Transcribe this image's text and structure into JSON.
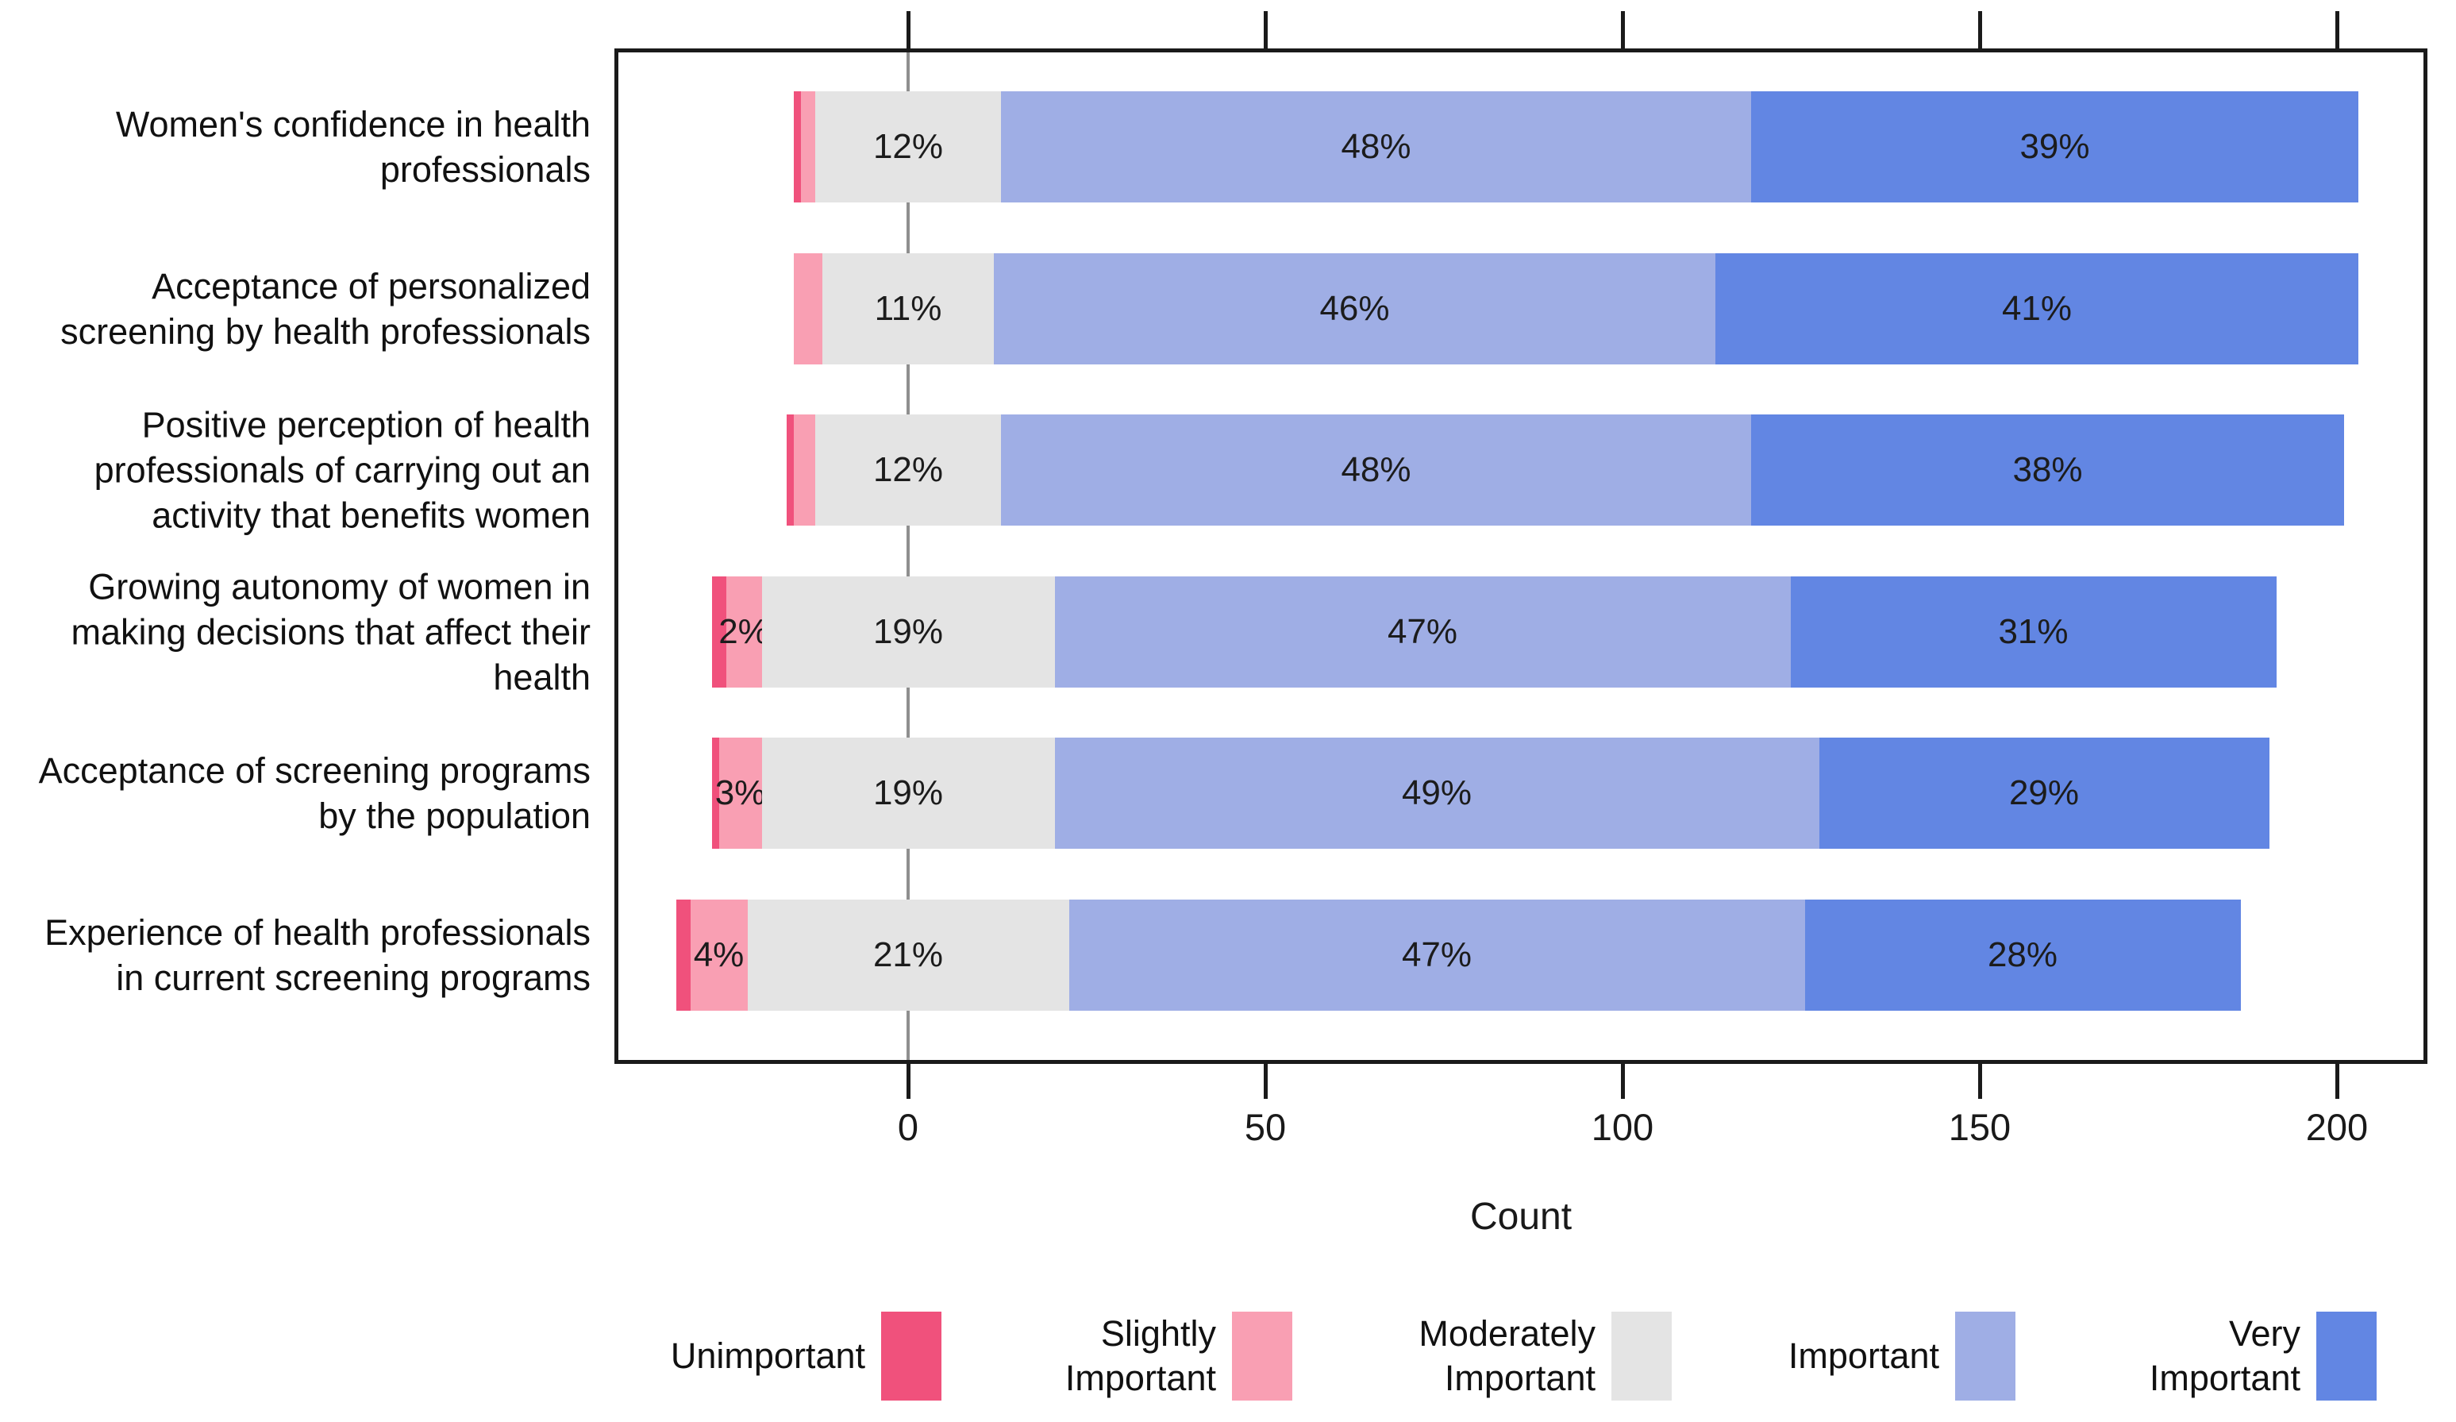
{
  "figure": {
    "xlabel": "Count"
  },
  "chart_data": {
    "type": "bar",
    "subtype": "diverging-stacked-likert-horizontal",
    "title": "",
    "xlabel": "Count",
    "ylabel": "",
    "x_ticks": [
      0,
      50,
      100,
      150,
      200
    ],
    "x_range": [
      -41,
      213
    ],
    "grid": "zero-line-only",
    "legend_position": "bottom",
    "note": "Counts per 5-point importance level [Unimportant, Slightly Important, Moderately Important, Important, Very Important]; bars centered on the Moderately Important midpoint at x=0. Percent labels as printed on the figure.",
    "levels": [
      {
        "key": "unimportant",
        "label": "Unimportant",
        "color": "#F0517C"
      },
      {
        "key": "slightly_important",
        "label": "Slightly\nImportant",
        "color": "#F99FB3"
      },
      {
        "key": "moderately_important",
        "label": "Moderately\nImportant",
        "color": "#E4E4E4"
      },
      {
        "key": "important",
        "label": "Important",
        "color": "#9FAEE5"
      },
      {
        "key": "very_important",
        "label": "Very\nImportant",
        "color": "#6286E3"
      }
    ],
    "rows": [
      {
        "label": "Women's confidence in health\nprofessionals",
        "counts": [
          1,
          2,
          26,
          105,
          85
        ],
        "pct_labels": [
          "",
          "",
          "12%",
          "48%",
          "39%"
        ]
      },
      {
        "label": "Acceptance of personalized\nscreening by health professionals",
        "counts": [
          0,
          4,
          24,
          101,
          90
        ],
        "pct_labels": [
          "",
          "",
          "11%",
          "46%",
          "41%"
        ]
      },
      {
        "label": "Positive perception of health\nprofessionals of carrying out an\nactivity that benefits women",
        "counts": [
          1,
          3,
          26,
          105,
          83
        ],
        "pct_labels": [
          "",
          "",
          "12%",
          "48%",
          "38%"
        ]
      },
      {
        "label": "Growing autonomy of women in\nmaking decisions that affect their\nhealth",
        "counts": [
          2,
          5,
          41,
          103,
          68
        ],
        "pct_labels": [
          "",
          "2%",
          "19%",
          "47%",
          "31%"
        ]
      },
      {
        "label": "Acceptance of screening programs\nby the population",
        "counts": [
          1,
          6,
          41,
          107,
          63
        ],
        "pct_labels": [
          "",
          "3%",
          "19%",
          "49%",
          "29%"
        ]
      },
      {
        "label": "Experience of health professionals\nin current screening programs",
        "counts": [
          2,
          8,
          45,
          103,
          61
        ],
        "pct_labels": [
          "",
          "4%",
          "21%",
          "47%",
          "28%"
        ]
      }
    ]
  }
}
